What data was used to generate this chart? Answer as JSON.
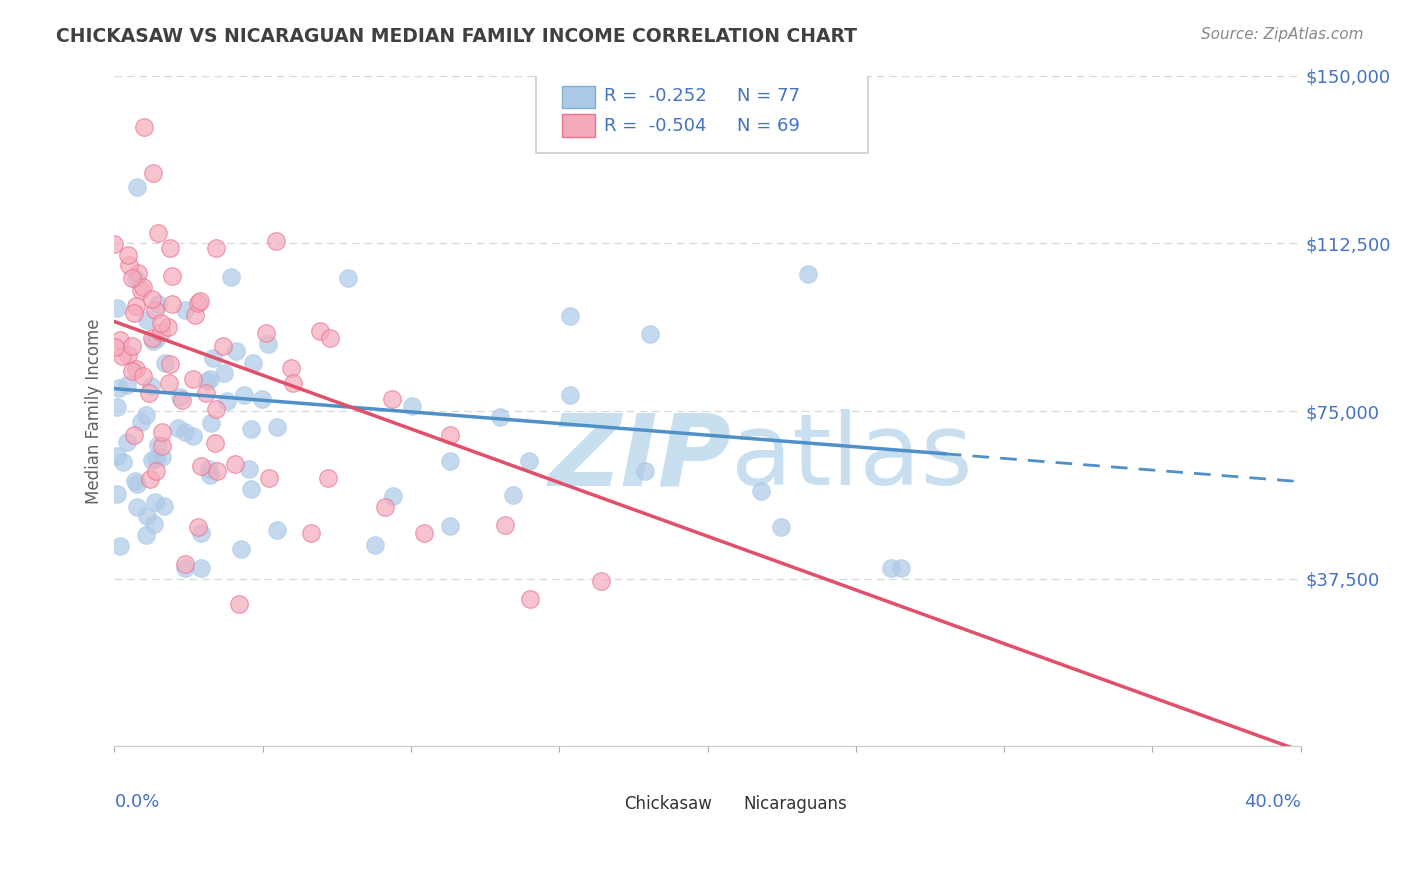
{
  "title": "CHICKASAW VS NICARAGUAN MEDIAN FAMILY INCOME CORRELATION CHART",
  "source_text": "Source: ZipAtlas.com",
  "ylabel": "Median Family Income",
  "y_ticks": [
    0,
    37500,
    75000,
    112500,
    150000
  ],
  "y_tick_labels": [
    "",
    "$37,500",
    "$75,000",
    "$112,500",
    "$150,000"
  ],
  "x_min": 0.0,
  "x_max": 0.4,
  "y_min": 0,
  "y_max": 150000,
  "chickasaw_R": -0.252,
  "chickasaw_N": 77,
  "nicaraguan_R": -0.504,
  "nicaraguan_N": 69,
  "chickasaw_color": "#adc9e8",
  "nicaraguan_color": "#f5aaba",
  "chickasaw_edge": "#7aafd4",
  "nicaraguan_edge": "#e87090",
  "trend_blue": "#5090c8",
  "trend_pink": "#e0506a",
  "watermark_zip_color": "#c8dff0",
  "watermark_atlas_color": "#c8dff0",
  "background_color": "#ffffff",
  "grid_color": "#d8d8d8",
  "title_color": "#404040",
  "axis_label_color": "#4472c4",
  "legend_R_color": "#4472c4",
  "source_color": "#888888"
}
